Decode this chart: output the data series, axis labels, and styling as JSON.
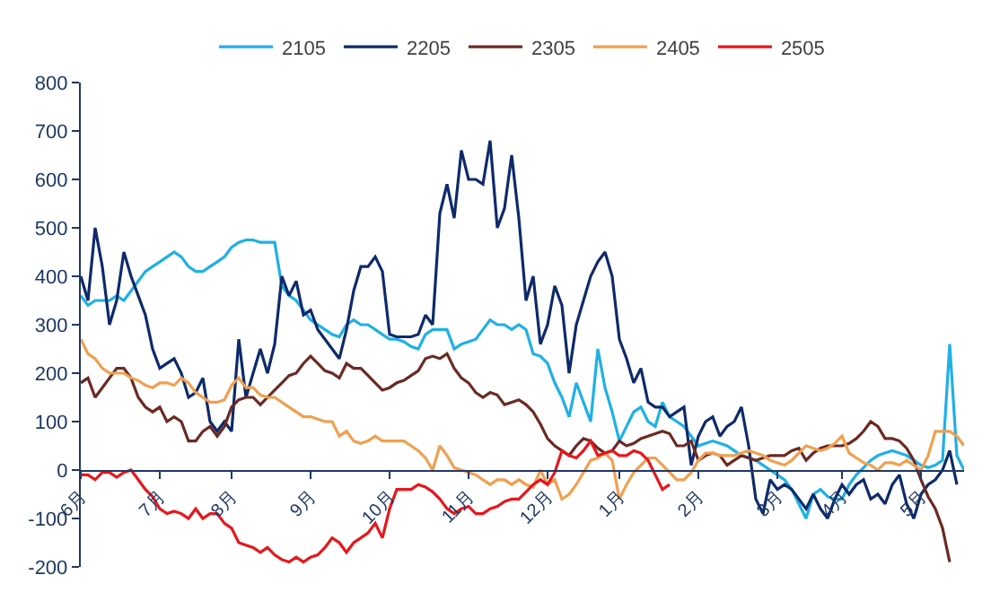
{
  "chart_data": {
    "type": "line",
    "legend": "top",
    "grid": false,
    "marker": "none",
    "line_style": "solid",
    "ylim": [
      -200,
      800
    ],
    "yticks": [
      -200,
      -100,
      0,
      100,
      200,
      300,
      400,
      500,
      600,
      700,
      800
    ],
    "categories": [
      "6月",
      null,
      null,
      null,
      null,
      null,
      null,
      null,
      null,
      null,
      null,
      "7月",
      null,
      null,
      null,
      null,
      null,
      null,
      null,
      null,
      null,
      "8月",
      null,
      null,
      null,
      null,
      null,
      null,
      null,
      null,
      null,
      null,
      "9月",
      null,
      null,
      null,
      null,
      null,
      null,
      null,
      null,
      null,
      null,
      "10月",
      null,
      null,
      null,
      null,
      null,
      null,
      null,
      null,
      null,
      null,
      "11月",
      null,
      null,
      null,
      null,
      null,
      null,
      null,
      null,
      null,
      null,
      "12月",
      null,
      null,
      null,
      null,
      null,
      null,
      null,
      null,
      null,
      "1月",
      null,
      null,
      null,
      null,
      null,
      null,
      null,
      null,
      null,
      null,
      "2月",
      null,
      null,
      null,
      null,
      null,
      null,
      null,
      null,
      null,
      null,
      "3月",
      null,
      null,
      null,
      null,
      null,
      null,
      null,
      null,
      "4月",
      null,
      null,
      null,
      null,
      null,
      null,
      null,
      null,
      null,
      null,
      "5月",
      null,
      null,
      null,
      null,
      null,
      null
    ],
    "series": [
      {
        "name": "2105",
        "color": "#1fb0e6",
        "values": [
          360,
          340,
          350,
          350,
          350,
          360,
          350,
          370,
          390,
          410,
          420,
          430,
          440,
          450,
          440,
          420,
          410,
          410,
          420,
          430,
          440,
          460,
          470,
          475,
          475,
          470,
          470,
          470,
          380,
          360,
          350,
          330,
          310,
          300,
          290,
          280,
          275,
          300,
          310,
          300,
          300,
          290,
          280,
          270,
          270,
          265,
          255,
          250,
          280,
          290,
          290,
          290,
          250,
          260,
          265,
          270,
          290,
          310,
          300,
          300,
          290,
          300,
          290,
          240,
          235,
          220,
          180,
          150,
          110,
          180,
          140,
          100,
          250,
          170,
          120,
          60,
          90,
          120,
          130,
          100,
          90,
          140,
          110,
          100,
          90,
          70,
          50,
          55,
          60,
          55,
          50,
          40,
          30,
          25,
          20,
          10,
          0,
          -10,
          -20,
          -40,
          -70,
          -100,
          -50,
          -40,
          -55,
          -60,
          -60,
          -30,
          -10,
          5,
          20,
          30,
          35,
          40,
          35,
          30,
          20,
          10,
          5,
          10,
          20,
          260,
          30,
          0
        ]
      },
      {
        "name": "2205",
        "color": "#0e2a6b",
        "values": [
          400,
          350,
          500,
          420,
          300,
          350,
          450,
          400,
          360,
          320,
          250,
          210,
          220,
          230,
          200,
          150,
          160,
          190,
          100,
          80,
          100,
          80,
          270,
          150,
          200,
          250,
          200,
          260,
          400,
          360,
          390,
          320,
          330,
          290,
          270,
          250,
          230,
          290,
          370,
          420,
          420,
          440,
          410,
          280,
          275,
          275,
          275,
          280,
          320,
          300,
          530,
          590,
          520,
          660,
          600,
          600,
          590,
          680,
          500,
          540,
          650,
          520,
          350,
          400,
          260,
          300,
          380,
          340,
          200,
          300,
          350,
          400,
          430,
          450,
          400,
          270,
          230,
          180,
          210,
          140,
          130,
          130,
          110,
          120,
          130,
          10,
          70,
          100,
          110,
          70,
          90,
          100,
          130,
          50,
          -60,
          -90,
          -20,
          -40,
          -30,
          -40,
          -60,
          -80,
          -50,
          -80,
          -100,
          -60,
          -30,
          -50,
          -30,
          -20,
          -60,
          -50,
          -70,
          -30,
          -10,
          -70,
          -100,
          -50,
          -30,
          -20,
          0,
          40,
          -30,
          null
        ]
      },
      {
        "name": "2305",
        "color": "#6b2a22",
        "values": [
          180,
          190,
          150,
          170,
          190,
          210,
          210,
          190,
          150,
          130,
          120,
          130,
          100,
          110,
          100,
          60,
          60,
          80,
          90,
          70,
          90,
          130,
          145,
          150,
          150,
          135,
          150,
          165,
          180,
          195,
          200,
          220,
          235,
          220,
          205,
          200,
          190,
          220,
          210,
          210,
          195,
          180,
          165,
          170,
          180,
          185,
          195,
          205,
          230,
          235,
          230,
          240,
          210,
          190,
          180,
          160,
          150,
          160,
          155,
          135,
          140,
          145,
          135,
          120,
          95,
          65,
          50,
          40,
          30,
          50,
          65,
          60,
          45,
          35,
          40,
          60,
          50,
          55,
          65,
          70,
          75,
          80,
          75,
          50,
          50,
          60,
          20,
          30,
          35,
          30,
          10,
          20,
          30,
          25,
          20,
          25,
          30,
          30,
          30,
          40,
          45,
          20,
          35,
          45,
          50,
          50,
          50,
          55,
          65,
          80,
          100,
          90,
          65,
          65,
          60,
          45,
          20,
          -20,
          -55,
          -80,
          -120,
          -190,
          null,
          null
        ]
      },
      {
        "name": "2405",
        "color": "#f0a050",
        "values": [
          270,
          240,
          230,
          210,
          200,
          200,
          200,
          190,
          185,
          175,
          170,
          180,
          180,
          175,
          190,
          180,
          160,
          150,
          140,
          140,
          145,
          175,
          190,
          170,
          170,
          155,
          150,
          150,
          140,
          130,
          120,
          110,
          110,
          105,
          100,
          100,
          70,
          80,
          60,
          55,
          60,
          70,
          60,
          60,
          60,
          60,
          50,
          40,
          25,
          0,
          50,
          30,
          5,
          0,
          -5,
          -10,
          -20,
          -30,
          -20,
          -20,
          -30,
          -20,
          -30,
          -35,
          0,
          -30,
          -20,
          -60,
          -50,
          -30,
          -5,
          20,
          25,
          35,
          20,
          -60,
          -30,
          -5,
          10,
          25,
          25,
          10,
          -5,
          -20,
          -20,
          -5,
          20,
          35,
          35,
          30,
          30,
          30,
          35,
          40,
          35,
          30,
          20,
          15,
          10,
          20,
          35,
          50,
          45,
          40,
          45,
          55,
          70,
          35,
          25,
          15,
          10,
          0,
          15,
          15,
          10,
          20,
          10,
          0,
          30,
          80,
          80,
          80,
          70,
          50
        ]
      },
      {
        "name": "2505",
        "color": "#e8161b",
        "values": [
          -10,
          -10,
          -20,
          -5,
          -5,
          -15,
          -5,
          0,
          -20,
          -40,
          -55,
          -80,
          -90,
          -85,
          -90,
          -100,
          -80,
          -100,
          -90,
          -90,
          -110,
          -120,
          -150,
          -155,
          -160,
          -170,
          -160,
          -175,
          -185,
          -190,
          -180,
          -190,
          -180,
          -175,
          -160,
          -140,
          -150,
          -170,
          -150,
          -140,
          -130,
          -110,
          -140,
          -80,
          -40,
          -40,
          -40,
          -30,
          -35,
          -45,
          -60,
          -80,
          -90,
          -80,
          -75,
          -90,
          -90,
          -80,
          -75,
          -65,
          -60,
          -60,
          -45,
          -30,
          -20,
          -30,
          -5,
          40,
          30,
          25,
          40,
          60,
          30,
          35,
          40,
          30,
          30,
          40,
          35,
          20,
          -10,
          -40,
          -30,
          null,
          null,
          null,
          null,
          null,
          null,
          null,
          null,
          null,
          null,
          null,
          null,
          null,
          null,
          null,
          null,
          null,
          null,
          null,
          null,
          null,
          null,
          null,
          null,
          null,
          null,
          null,
          null,
          null,
          null,
          null,
          null,
          null,
          null,
          null,
          null,
          null,
          null,
          null,
          null,
          null
        ]
      }
    ]
  }
}
